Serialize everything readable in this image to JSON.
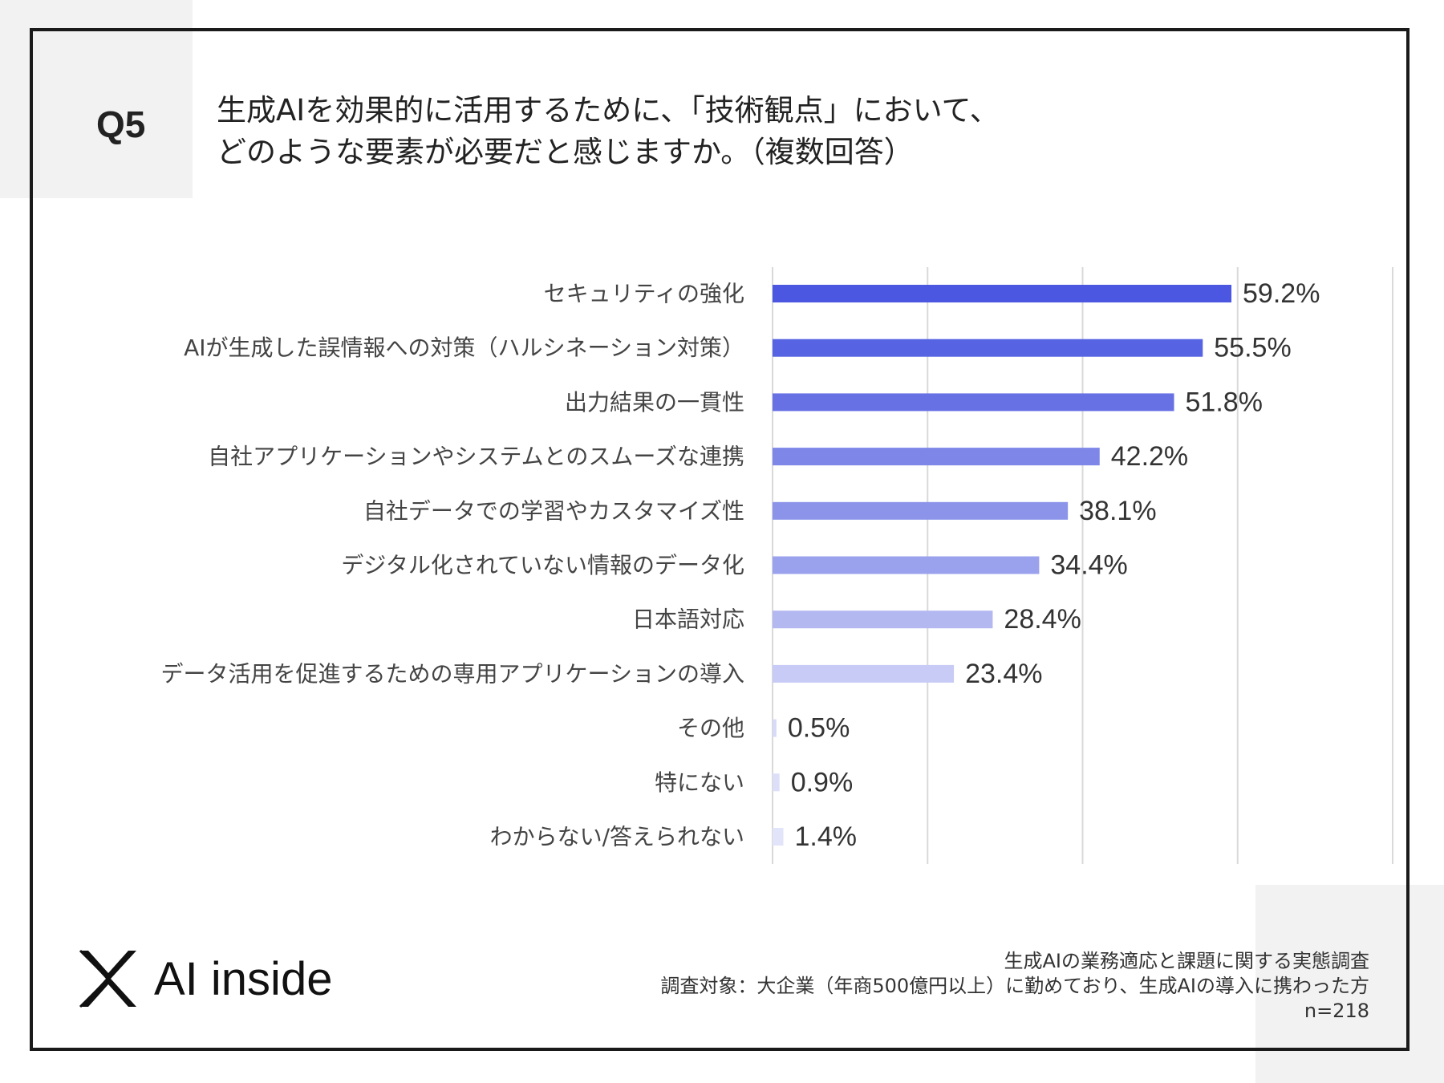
{
  "question": "Q5",
  "title_line1": "生成AIを効果的に活用するために、「技術観点」において、",
  "title_line2": "どのような要素が必要だと感じますか。（複数回答）",
  "colors": {
    "frame": "#1a1a1a",
    "bars": [
      "#4b57e0",
      "#5663e2",
      "#6771e4",
      "#7e87e7",
      "#8c94ea",
      "#9ba2ed",
      "#b3b8f1",
      "#c7cbf5",
      "#d7daf8",
      "#dddff9",
      "#e2e4fa"
    ]
  },
  "chart_data": {
    "type": "bar",
    "orientation": "horizontal",
    "categories": [
      "セキュリティの強化",
      "AIが生成した誤情報への対策（ハルシネーション対策）",
      "出力結果の一貫性",
      "自社アプリケーションやシステムとのスムーズな連携",
      "自社データでの学習やカスタマイズ性",
      "デジタル化されていない情報のデータ化",
      "日本語対応",
      "データ活用を促進するための専用アプリケーションの導入",
      "その他",
      "特にない",
      "わからない/答えられない"
    ],
    "values": [
      59.2,
      55.5,
      51.8,
      42.2,
      38.1,
      34.4,
      28.4,
      23.4,
      0.5,
      0.9,
      1.4
    ],
    "value_labels": [
      "59.2%",
      "55.5%",
      "51.8%",
      "42.2%",
      "38.1%",
      "34.4%",
      "28.4%",
      "23.4%",
      "0.5%",
      "0.9%",
      "1.4%"
    ],
    "xlim": [
      0,
      80
    ],
    "gridlines": [
      0,
      20,
      40,
      60,
      80
    ],
    "title": "",
    "xlabel": "",
    "ylabel": ""
  },
  "logo": {
    "text": "AI inside",
    "icon": "x-logo-icon"
  },
  "footnote": {
    "line1": "生成AIの業務適応と課題に関する実態調査",
    "line2": "調査対象：大企業（年商500億円以上）に勤めており、生成AIの導入に携わった方",
    "line3": "n=218"
  }
}
